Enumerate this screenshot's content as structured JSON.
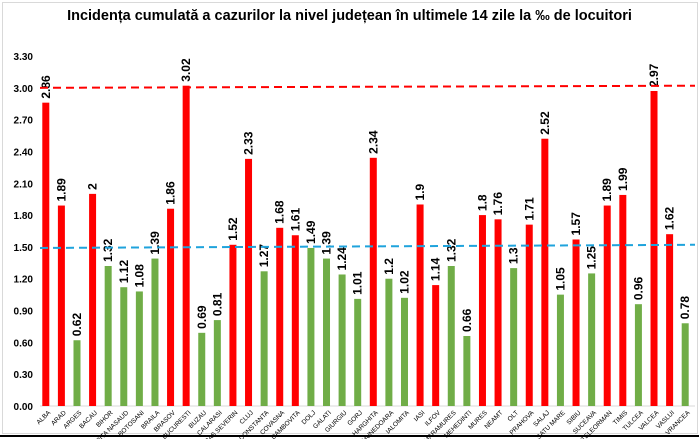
{
  "chart_data": {
    "type": "bar",
    "title": "Incidența cumulată a cazurilor la nivel județean în ultimele 14 zile la ‰ de locuitori",
    "xlabel": "",
    "ylabel": "",
    "ylim": [
      0,
      3.3
    ],
    "yticks": [
      "0.00",
      "0.30",
      "0.60",
      "0.90",
      "1.20",
      "1.50",
      "1.80",
      "2.10",
      "2.40",
      "2.70",
      "3.00",
      "3.30"
    ],
    "grid": false,
    "colors": {
      "red": "#ff0000",
      "green": "#70ad47",
      "red_line": "#ff0000",
      "blue_line": "#1fa3dc"
    },
    "categories": [
      "ALBA",
      "ARAD",
      "ARGES",
      "BACAU",
      "BIHOR",
      "BISTRITA NASAUD",
      "BOTOSANI",
      "BRAILA",
      "BRASOV",
      "BUCURESTI",
      "BUZAU",
      "CALARASI",
      "CARAS SEVERIN",
      "CLUJ",
      "CONSTANTA",
      "COVASNA",
      "DAMBOVITA",
      "DOLJ",
      "GALATI",
      "GIURGIU",
      "GORJ",
      "HARGHITA",
      "HUNEDOARA",
      "IALOMITA",
      "IASI",
      "ILFOV",
      "MARAMURES",
      "MEHEDINTI",
      "MURES",
      "NEAMT",
      "OLT",
      "PRAHOVA",
      "SALAJ",
      "SATU MARE",
      "SIBIU",
      "SUCEAVA",
      "TELEORMAN",
      "TIMIS",
      "TULCEA",
      "VALCEA",
      "VASLUI",
      "VRANCEA"
    ],
    "values": [
      2.86,
      1.89,
      0.62,
      2,
      1.32,
      1.12,
      1.08,
      1.39,
      1.86,
      3.02,
      0.69,
      0.81,
      1.52,
      2.33,
      1.27,
      1.68,
      1.61,
      1.49,
      1.39,
      1.24,
      1.01,
      2.34,
      1.2,
      1.02,
      1.9,
      1.14,
      1.32,
      0.66,
      1.8,
      1.76,
      1.3,
      1.71,
      2.52,
      1.05,
      1.57,
      1.25,
      1.89,
      1.99,
      0.96,
      2.97,
      1.62,
      0.78
    ],
    "bar_colors": [
      "red",
      "red",
      "green",
      "red",
      "green",
      "green",
      "green",
      "green",
      "red",
      "red",
      "green",
      "green",
      "red",
      "red",
      "green",
      "red",
      "red",
      "green",
      "green",
      "green",
      "green",
      "red",
      "green",
      "green",
      "red",
      "red",
      "green",
      "green",
      "red",
      "red",
      "green",
      "red",
      "red",
      "green",
      "red",
      "green",
      "red",
      "red",
      "green",
      "red",
      "red",
      "green"
    ],
    "reference_lines": [
      {
        "name": "red-threshold-line",
        "color": "red_line",
        "from": 3.0,
        "to": 3.02
      },
      {
        "name": "average-line",
        "color": "blue_line",
        "from": 1.49,
        "to": 1.52
      }
    ]
  }
}
